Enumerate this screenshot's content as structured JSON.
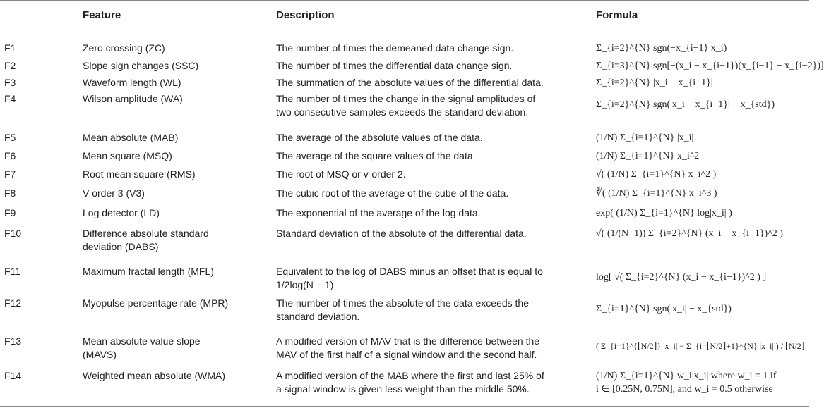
{
  "header": {
    "col_id": "",
    "col_feature": "Feature",
    "col_description": "Description",
    "col_formula": "Formula"
  },
  "rows": [
    {
      "id": "F1",
      "feature": [
        "Zero crossing (ZC)"
      ],
      "description": [
        "The number of times the demeaned data change sign."
      ],
      "formula": [
        "Σ_{i=2}^{N} sgn(−x_{i−1} x_i)"
      ]
    },
    {
      "id": "F2",
      "feature": [
        "Slope sign changes (SSC)"
      ],
      "description": [
        "The number of times the differential data change sign."
      ],
      "formula": [
        "Σ_{i=3}^{N} sgn[−(x_i − x_{i−1})(x_{i−1} − x_{i−2})]"
      ]
    },
    {
      "id": "F3",
      "feature": [
        "Waveform length (WL)"
      ],
      "description": [
        "The summation of the absolute values of the differential data."
      ],
      "formula": [
        "Σ_{i=2}^{N} |x_i − x_{i−1}|"
      ]
    },
    {
      "id": "F4",
      "feature": [
        "Wilson amplitude (WA)"
      ],
      "description": [
        "The number of times the change in the signal amplitudes of",
        "two consecutive samples exceeds the standard deviation."
      ],
      "formula": [
        "Σ_{i=2}^{N} sgn(|x_i − x_{i−1}| − x_{std})"
      ]
    },
    {
      "id": "F5",
      "feature": [
        "Mean absolute (MAB)"
      ],
      "description": [
        "The average of the absolute values of the data."
      ],
      "formula": [
        "(1/N) Σ_{i=1}^{N} |x_i|"
      ]
    },
    {
      "id": "F6",
      "feature": [
        "Mean square (MSQ)"
      ],
      "description": [
        "The average of the square values of the data."
      ],
      "formula": [
        "(1/N) Σ_{i=1}^{N} x_i^2"
      ]
    },
    {
      "id": "F7",
      "feature": [
        "Root mean square (RMS)"
      ],
      "description": [
        "The root of MSQ or v-order 2."
      ],
      "formula": [
        "√( (1/N) Σ_{i=1}^{N} x_i^2 )"
      ]
    },
    {
      "id": "F8",
      "feature": [
        "V-order 3 (V3)"
      ],
      "description": [
        "The cubic root of the average of the cube of the data."
      ],
      "formula": [
        "∛( (1/N) Σ_{i=1}^{N} x_i^3 )"
      ]
    },
    {
      "id": "F9",
      "feature": [
        "Log detector (LD)"
      ],
      "description": [
        "The exponential of the average of the log data."
      ],
      "formula": [
        "exp( (1/N) Σ_{i=1}^{N} log|x_i| )"
      ]
    },
    {
      "id": "F10",
      "feature": [
        "Difference absolute standard",
        "deviation (DABS)"
      ],
      "description": [
        "Standard deviation of the absolute of the differential data."
      ],
      "formula": [
        "√( (1/(N−1)) Σ_{i=2}^{N} (x_i − x_{i−1})^2 )"
      ]
    },
    {
      "id": "F11",
      "feature": [
        "Maximum fractal length (MFL)"
      ],
      "description": [
        "Equivalent to the log of DABS minus an offset that is equal to",
        "1/2log(N − 1)"
      ],
      "formula": [
        "log[ √( Σ_{i=2}^{N} (x_i − x_{i−1})^2 ) ]"
      ]
    },
    {
      "id": "F12",
      "feature": [
        "Myopulse percentage rate (MPR)"
      ],
      "description": [
        "The number of times the absolute of the data exceeds the",
        "standard deviation."
      ],
      "formula": [
        "Σ_{i=1}^{N} sgn(|x_i| − x_{std})"
      ]
    },
    {
      "id": "F13",
      "feature": [
        "Mean absolute value slope",
        "(MAVS)"
      ],
      "description": [
        "A modified version of MAV that is the difference between the",
        "MAV of the first half of a signal window and the second half."
      ],
      "formula": [
        "( Σ_{i=1}^{⌊N/2⌋} |x_i| − Σ_{i=⌊N/2⌋+1}^{N} |x_i| ) / ⌊N/2⌋"
      ]
    },
    {
      "id": "F14",
      "feature": [
        "Weighted mean absolute (WMA)"
      ],
      "description": [
        "A modified version of the MAB where the first and last 25% of",
        "a signal window is given less weight than the middle 50%."
      ],
      "formula": [
        "(1/N) Σ_{i=1}^{N} w_i|x_i| where w_i = 1 if",
        "i ∈ [0.25N, 0.75N], and w_i = 0.5 otherwise"
      ]
    }
  ]
}
